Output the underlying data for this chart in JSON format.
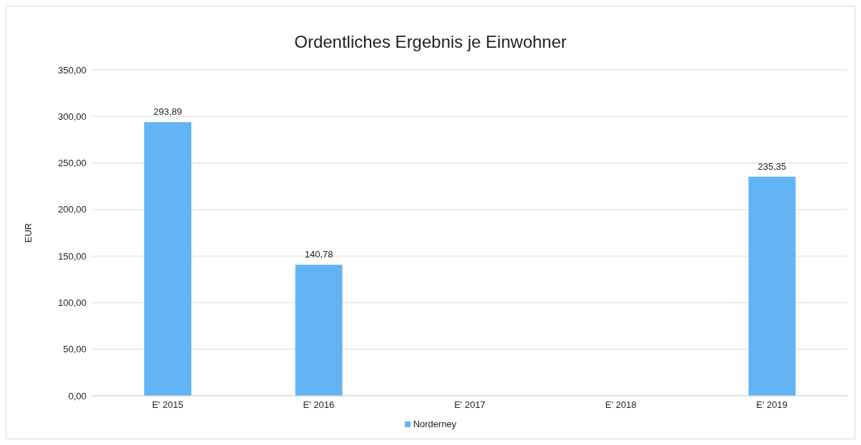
{
  "chart_data": {
    "type": "bar",
    "title": "Ordentliches Ergebnis je Einwohner",
    "ylabel": "EUR",
    "categories": [
      "E' 2015",
      "E' 2016",
      "E' 2017",
      "E' 2018",
      "E' 2019"
    ],
    "series": [
      {
        "name": "Norderney",
        "color": "#63b4f5",
        "values": [
          293.89,
          140.78,
          null,
          null,
          235.35
        ],
        "value_labels": [
          "293,89",
          "140,78",
          null,
          null,
          "235,35"
        ]
      }
    ],
    "ylim": [
      0,
      350
    ],
    "yticks": [
      {
        "value": 0,
        "label": "0,00"
      },
      {
        "value": 50,
        "label": "50,00"
      },
      {
        "value": 100,
        "label": "100,00"
      },
      {
        "value": 150,
        "label": "150,00"
      },
      {
        "value": 200,
        "label": "200,00"
      },
      {
        "value": 250,
        "label": "250,00"
      },
      {
        "value": 300,
        "label": "300,00"
      },
      {
        "value": 350,
        "label": "350,00"
      }
    ],
    "grid": "y",
    "legend": "bottom"
  }
}
